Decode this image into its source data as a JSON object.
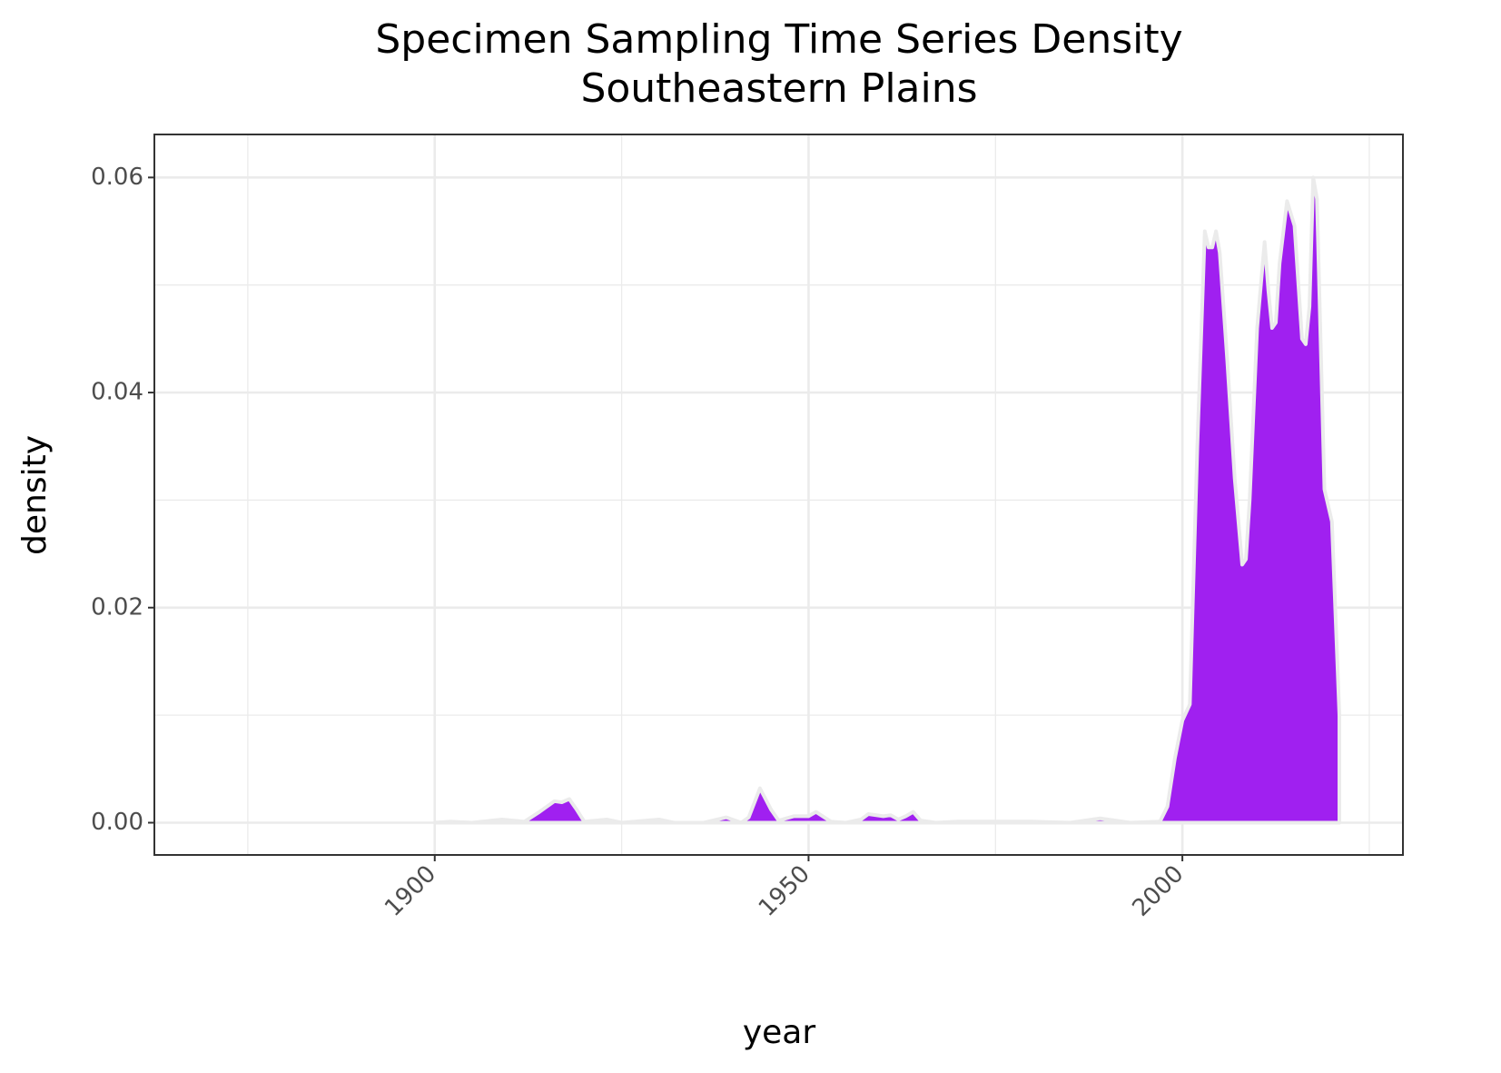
{
  "chart_data": {
    "type": "area",
    "title": "Specimen Sampling Time Series Density",
    "subtitle": "Southeastern Plains",
    "x_label": "year",
    "y_label": "density",
    "x": [
      1900,
      1902,
      1905,
      1909,
      1912,
      1914,
      1916,
      1917,
      1918,
      1919,
      1920,
      1923,
      1925,
      1930,
      1932,
      1936,
      1939,
      1941,
      1942,
      1943.5,
      1945,
      1946,
      1948,
      1950,
      1951,
      1953,
      1955,
      1957,
      1958,
      1960,
      1961,
      1962,
      1963,
      1964,
      1965,
      1967,
      1970,
      1980,
      1985,
      1989,
      1993,
      1997,
      1998,
      1999,
      2000,
      2001,
      2002,
      2003,
      2003.5,
      2004,
      2004.5,
      2005,
      2006,
      2007,
      2008,
      2008.5,
      2009,
      2010,
      2011,
      2011.5,
      2012,
      2012.5,
      2013,
      2014,
      2015,
      2016,
      2016.5,
      2017,
      2017.5,
      2018,
      2019,
      2020,
      2021
    ],
    "values": [
      0,
      0.0001,
      0,
      0.0003,
      0.0001,
      0.001,
      0.002,
      0.0019,
      0.0022,
      0.0012,
      0.0001,
      0.0003,
      0,
      0.0003,
      0,
      0,
      0.0005,
      0,
      0.0005,
      0.0032,
      0.0012,
      0.0002,
      0.0006,
      0.0006,
      0.001,
      0.0001,
      0,
      0.0003,
      0.0008,
      0.0006,
      0.0007,
      0.0003,
      0.0006,
      0.001,
      0.0002,
      0,
      0.0001,
      0.0001,
      0,
      0.0004,
      0,
      0.0001,
      0.0015,
      0.006,
      0.0095,
      0.011,
      0.035,
      0.055,
      0.0535,
      0.0535,
      0.055,
      0.053,
      0.043,
      0.032,
      0.024,
      0.0245,
      0.03,
      0.046,
      0.054,
      0.0495,
      0.046,
      0.0465,
      0.052,
      0.0578,
      0.0555,
      0.045,
      0.0445,
      0.048,
      0.06,
      0.058,
      0.031,
      0.028,
      0.01
    ],
    "color": "#a020f0",
    "outline_color": "#ebebeb",
    "xlim": [
      1862.5,
      2029.5
    ],
    "xticks": [
      1900,
      1950,
      2000
    ],
    "ylim": [
      -0.003,
      0.064
    ],
    "yticks": [
      {
        "value": 0,
        "label": "0.00"
      },
      {
        "value": 0.02,
        "label": "0.02"
      },
      {
        "value": 0.04,
        "label": "0.04"
      },
      {
        "value": 0.06,
        "label": "0.06"
      }
    ],
    "grid": true
  }
}
